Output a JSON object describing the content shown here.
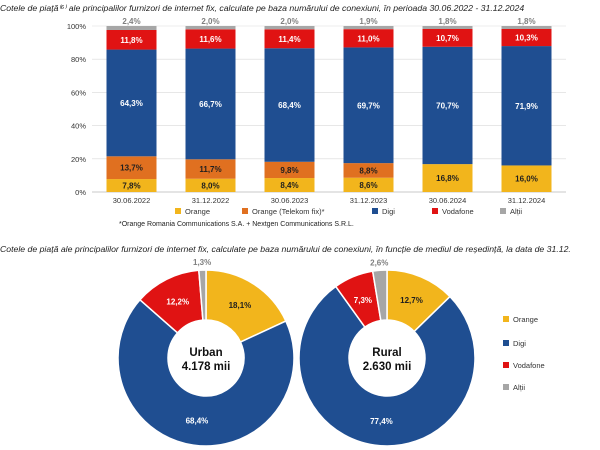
{
  "colors": {
    "orange": "#f2b51c",
    "telekom": "#e07020",
    "digi": "#1f4e91",
    "vodafone": "#e01313",
    "altii": "#a6a6a6"
  },
  "chart_data": [
    {
      "type": "bar",
      "stacked": true,
      "title": "Cotele de piață⁽⁶⁾ ale principalilor furnizori de internet fix, calculate pe baza numărului de conexiuni, în perioada 30.06.2022 - 31.12.2024",
      "categories": [
        "30.06.2022",
        "31.12.2022",
        "30.06.2023",
        "31.12.2023",
        "30.06.2024",
        "31.12.2024"
      ],
      "yticks": [
        "0%",
        "20%",
        "40%",
        "60%",
        "80%",
        "100%"
      ],
      "ylim": [
        0,
        100
      ],
      "series": [
        {
          "name": "Orange",
          "color_key": "orange",
          "values": [
            7.8,
            8.0,
            8.4,
            8.6,
            16.8,
            16.0
          ],
          "labels": [
            "7,8%",
            "8,0%",
            "8,4%",
            "8,6%",
            "16,8%",
            "16,0%"
          ]
        },
        {
          "name": "Orange (Telekom fix)*",
          "color_key": "telekom",
          "values": [
            13.7,
            11.7,
            9.8,
            8.8,
            0,
            0
          ],
          "labels": [
            "13,7%",
            "11,7%",
            "9,8%",
            "8,8%",
            "",
            ""
          ]
        },
        {
          "name": "Digi",
          "color_key": "digi",
          "values": [
            64.3,
            66.7,
            68.4,
            69.7,
            70.7,
            71.9
          ],
          "labels": [
            "64,3%",
            "66,7%",
            "68,4%",
            "69,7%",
            "70,7%",
            "71,9%"
          ]
        },
        {
          "name": "Vodafone",
          "color_key": "vodafone",
          "values": [
            11.8,
            11.6,
            11.4,
            11.0,
            10.7,
            10.3
          ],
          "labels": [
            "11,8%",
            "11,6%",
            "11,4%",
            "11,0%",
            "10,7%",
            "10,3%"
          ]
        },
        {
          "name": "Alții",
          "color_key": "altii",
          "values": [
            2.4,
            2.0,
            2.0,
            1.9,
            1.8,
            1.8
          ],
          "labels": [
            "2,4%",
            "2,0%",
            "2,0%",
            "1,9%",
            "1,8%",
            "1,8%"
          ]
        }
      ],
      "legend_position": "bottom",
      "footnote": "*Orange Romania Communications S.A. + Nextgen Communications S.R.L."
    },
    {
      "type": "pie",
      "donut": true,
      "title": "Cotele de piață ale principalilor furnizori de internet fix, calculate pe baza numărului de conexiuni, în funcție de mediul de reședință, la data de 31.12.",
      "pies": [
        {
          "center_title": "Urban",
          "center_value": "4.178 mii",
          "slices": [
            {
              "name": "Orange",
              "color_key": "orange",
              "value": 18.1,
              "label": "18,1%"
            },
            {
              "name": "Digi",
              "color_key": "digi",
              "value": 68.4,
              "label": "68,4%"
            },
            {
              "name": "Vodafone",
              "color_key": "vodafone",
              "value": 12.2,
              "label": "12,2%"
            },
            {
              "name": "Alții",
              "color_key": "altii",
              "value": 1.3,
              "label": "1,3%"
            }
          ]
        },
        {
          "center_title": "Rural",
          "center_value": "2.630 mii",
          "slices": [
            {
              "name": "Orange",
              "color_key": "orange",
              "value": 12.7,
              "label": "12,7%"
            },
            {
              "name": "Digi",
              "color_key": "digi",
              "value": 77.4,
              "label": "77,4%"
            },
            {
              "name": "Vodafone",
              "color_key": "vodafone",
              "value": 7.3,
              "label": "7,3%"
            },
            {
              "name": "Alții",
              "color_key": "altii",
              "value": 2.6,
              "label": "2,6%"
            }
          ]
        }
      ],
      "legend": [
        "Orange",
        "Digi",
        "Vodafone",
        "Alții"
      ],
      "legend_position": "right"
    }
  ]
}
